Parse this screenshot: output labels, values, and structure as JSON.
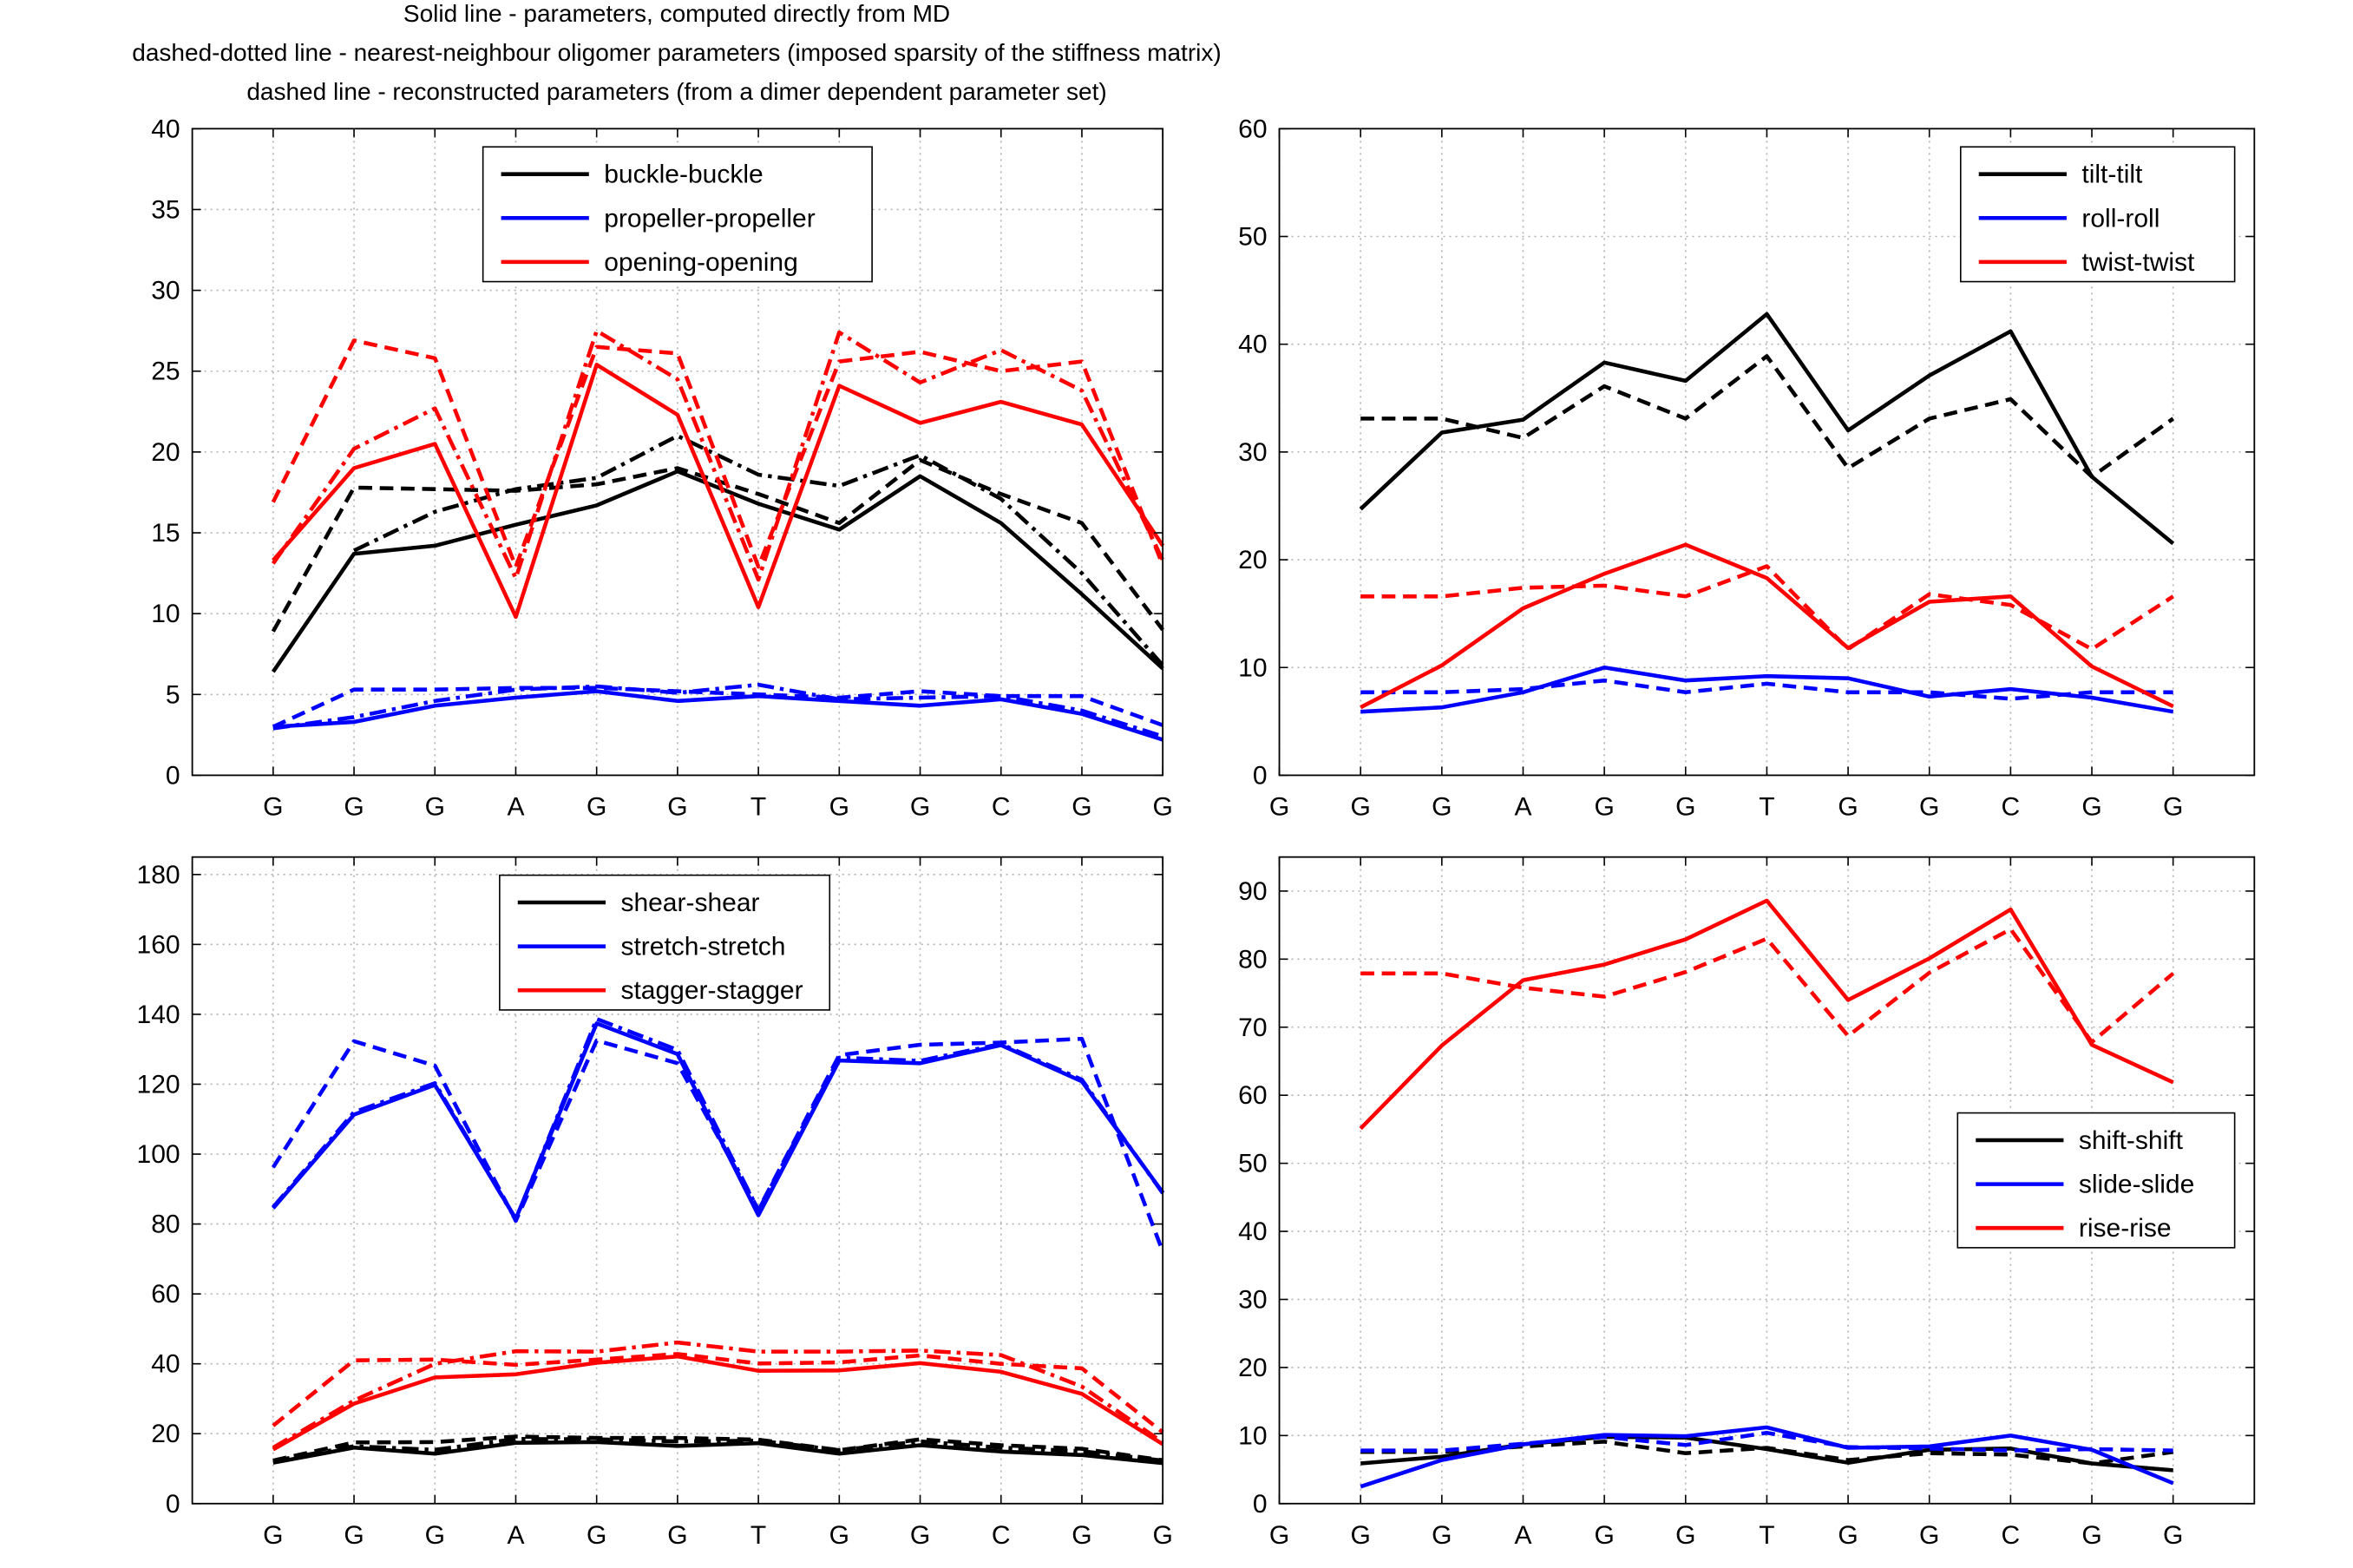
{
  "figure_title": [
    "Solid line - parameters, computed directly from MD",
    "dashed-dotted line - nearest-neighbour oligomer parameters (imposed sparsity of the stiffness matrix)",
    "dashed line - reconstructed parameters (from a dimer dependent parameter set)"
  ],
  "colors": {
    "black": "#000000",
    "blue": "#0000ff",
    "red": "#ff0000",
    "grid": "#b0b0b0"
  },
  "chart_data": [
    {
      "type": "line",
      "panel": "top-left",
      "title": "",
      "xlabel": "",
      "ylabel": "",
      "categories": [
        "G",
        "G",
        "G",
        "A",
        "G",
        "G",
        "T",
        "G",
        "G",
        "C",
        "G",
        "G"
      ],
      "ylim": [
        0,
        40
      ],
      "yticks": [
        0,
        5,
        10,
        15,
        20,
        25,
        30,
        35,
        40
      ],
      "grid": true,
      "legend_position": "top-center",
      "series": [
        {
          "name": "buckle-buckle",
          "color": "#000000",
          "style": "solid",
          "x": [
            1,
            2,
            3,
            4,
            5,
            6,
            7,
            8,
            9,
            10,
            11,
            12
          ],
          "values": [
            6.4,
            13.7,
            14.2,
            15.5,
            16.7,
            18.8,
            16.8,
            15.2,
            18.5,
            15.6,
            11.2,
            6.6
          ]
        },
        {
          "name": "",
          "color": "#000000",
          "style": "dashdot",
          "x": [
            1,
            2,
            3,
            4,
            5,
            6,
            7,
            8,
            9,
            10,
            11,
            12
          ],
          "values": [
            null,
            13.9,
            16.3,
            17.7,
            18.4,
            21.0,
            18.6,
            17.9,
            19.8,
            17.1,
            12.5,
            6.8
          ]
        },
        {
          "name": "",
          "color": "#000000",
          "style": "dashed",
          "x": [
            1,
            2,
            3,
            4,
            5,
            6,
            7,
            8,
            9,
            10,
            11,
            12
          ],
          "values": [
            8.9,
            17.8,
            17.7,
            17.6,
            18.0,
            19.0,
            17.4,
            15.6,
            19.5,
            17.4,
            15.6,
            9.0
          ]
        },
        {
          "name": "propeller-propeller",
          "color": "#0000ff",
          "style": "solid",
          "x": [
            1,
            2,
            3,
            4,
            5,
            6,
            7,
            8,
            9,
            10,
            11,
            12
          ],
          "values": [
            3.0,
            3.3,
            4.3,
            4.8,
            5.2,
            4.6,
            4.9,
            4.6,
            4.3,
            4.7,
            3.8,
            2.2
          ]
        },
        {
          "name": "",
          "color": "#0000ff",
          "style": "dashdot",
          "x": [
            1,
            2,
            3,
            4,
            5,
            6,
            7,
            8,
            9,
            10,
            11,
            12
          ],
          "values": [
            2.9,
            3.6,
            4.6,
            5.3,
            5.5,
            5.1,
            5.6,
            4.7,
            4.8,
            4.9,
            4.0,
            2.4
          ]
        },
        {
          "name": "",
          "color": "#0000ff",
          "style": "dashed",
          "x": [
            1,
            2,
            3,
            4,
            5,
            6,
            7,
            8,
            9,
            10,
            11,
            12
          ],
          "values": [
            3.0,
            5.3,
            5.3,
            5.4,
            5.4,
            5.2,
            5.0,
            4.8,
            5.2,
            4.9,
            4.9,
            3.1
          ]
        },
        {
          "name": "opening-opening",
          "color": "#ff0000",
          "style": "solid",
          "x": [
            1,
            2,
            3,
            4,
            5,
            6,
            7,
            8,
            9,
            10,
            11,
            12
          ],
          "values": [
            13.3,
            19.0,
            20.5,
            9.8,
            25.4,
            22.3,
            10.4,
            24.1,
            21.8,
            23.1,
            21.7,
            14.2
          ]
        },
        {
          "name": "",
          "color": "#ff0000",
          "style": "dashdot",
          "x": [
            1,
            2,
            3,
            4,
            5,
            6,
            7,
            8,
            9,
            10,
            11,
            12
          ],
          "values": [
            13.1,
            20.2,
            22.7,
            12.2,
            27.5,
            24.5,
            12.1,
            27.4,
            24.3,
            26.3,
            23.8,
            13.3
          ]
        },
        {
          "name": "",
          "color": "#ff0000",
          "style": "dashed",
          "x": [
            1,
            2,
            3,
            4,
            5,
            6,
            7,
            8,
            9,
            10,
            11,
            12
          ],
          "values": [
            16.9,
            26.9,
            25.8,
            12.9,
            26.5,
            26.1,
            12.9,
            25.6,
            26.2,
            25.0,
            25.6,
            13.0
          ]
        }
      ]
    },
    {
      "type": "line",
      "panel": "top-right",
      "title": "",
      "xlabel": "",
      "ylabel": "",
      "categories": [
        "G",
        "G",
        "G",
        "A",
        "G",
        "G",
        "T",
        "G",
        "G",
        "C",
        "G",
        "G"
      ],
      "xlim": [
        0,
        12
      ],
      "ylim": [
        0,
        60
      ],
      "yticks": [
        0,
        10,
        20,
        30,
        40,
        50,
        60
      ],
      "grid": true,
      "legend_position": "top-right",
      "series": [
        {
          "name": "tilt-tilt",
          "color": "#000000",
          "style": "solid",
          "x": [
            1,
            2,
            3,
            4,
            5,
            6,
            7,
            8,
            9,
            10,
            11
          ],
          "values": [
            24.7,
            31.8,
            33.0,
            38.3,
            36.6,
            42.8,
            32.0,
            37.1,
            41.2,
            27.7,
            21.5
          ]
        },
        {
          "name": "",
          "color": "#000000",
          "style": "dashed",
          "x": [
            1,
            2,
            3,
            4,
            5,
            6,
            7,
            8,
            9,
            10,
            11
          ],
          "values": [
            33.1,
            33.1,
            31.3,
            36.1,
            33.1,
            38.9,
            28.5,
            33.1,
            34.9,
            27.7,
            33.1
          ]
        },
        {
          "name": "roll-roll",
          "color": "#0000ff",
          "style": "solid",
          "x": [
            1,
            2,
            3,
            4,
            5,
            6,
            7,
            8,
            9,
            10,
            11
          ],
          "values": [
            5.9,
            6.3,
            7.7,
            10.0,
            8.8,
            9.2,
            9.0,
            7.3,
            8.0,
            7.2,
            5.9
          ]
        },
        {
          "name": "",
          "color": "#0000ff",
          "style": "dashed",
          "x": [
            1,
            2,
            3,
            4,
            5,
            6,
            7,
            8,
            9,
            10,
            11
          ],
          "values": [
            7.7,
            7.7,
            8.0,
            8.8,
            7.7,
            8.5,
            7.7,
            7.7,
            7.1,
            7.7,
            7.7
          ]
        },
        {
          "name": "twist-twist",
          "color": "#ff0000",
          "style": "solid",
          "x": [
            1,
            2,
            3,
            4,
            5,
            6,
            7,
            8,
            9,
            10,
            11
          ],
          "values": [
            6.3,
            10.2,
            15.5,
            18.7,
            21.4,
            18.3,
            11.8,
            16.1,
            16.6,
            10.1,
            6.4
          ]
        },
        {
          "name": "",
          "color": "#ff0000",
          "style": "dashed",
          "x": [
            1,
            2,
            3,
            4,
            5,
            6,
            7,
            8,
            9,
            10,
            11
          ],
          "values": [
            16.6,
            16.6,
            17.4,
            17.6,
            16.6,
            19.4,
            11.7,
            16.8,
            15.8,
            11.7,
            16.6
          ]
        }
      ]
    },
    {
      "type": "line",
      "panel": "bottom-left",
      "title": "",
      "xlabel": "",
      "ylabel": "",
      "categories": [
        "G",
        "G",
        "G",
        "A",
        "G",
        "G",
        "T",
        "G",
        "G",
        "C",
        "G",
        "G"
      ],
      "ylim": [
        0,
        185
      ],
      "yticks": [
        0,
        20,
        40,
        60,
        80,
        100,
        120,
        140,
        160,
        180
      ],
      "grid": true,
      "legend_position": "top-center",
      "series": [
        {
          "name": "shear-shear",
          "color": "#000000",
          "style": "solid",
          "x": [
            1,
            2,
            3,
            4,
            5,
            6,
            7,
            8,
            9,
            10,
            11,
            12
          ],
          "values": [
            11.7,
            16.0,
            14.3,
            17.4,
            17.6,
            16.5,
            17.3,
            14.3,
            16.7,
            14.9,
            13.9,
            11.6
          ]
        },
        {
          "name": "",
          "color": "#000000",
          "style": "dashdot",
          "x": [
            1,
            2,
            3,
            4,
            5,
            6,
            7,
            8,
            9,
            10,
            11,
            12
          ],
          "values": [
            12.2,
            16.4,
            15.4,
            18.5,
            18.4,
            17.8,
            18.0,
            15.3,
            17.8,
            16.0,
            15.0,
            12.3
          ]
        },
        {
          "name": "",
          "color": "#000000",
          "style": "dashed",
          "x": [
            1,
            2,
            3,
            4,
            5,
            6,
            7,
            8,
            9,
            10,
            11,
            12
          ],
          "values": [
            12.3,
            17.5,
            17.6,
            19.2,
            18.8,
            18.8,
            18.3,
            15.3,
            18.4,
            16.7,
            15.7,
            12.4
          ]
        },
        {
          "name": "stretch-stretch",
          "color": "#0000ff",
          "style": "solid",
          "x": [
            1,
            2,
            3,
            4,
            5,
            6,
            7,
            8,
            9,
            10,
            11,
            12
          ],
          "values": [
            84.5,
            111.3,
            119.8,
            81.5,
            137.4,
            128.6,
            82.5,
            126.8,
            126.0,
            131.2,
            120.8,
            89.0
          ]
        },
        {
          "name": "",
          "color": "#0000ff",
          "style": "dashdot",
          "x": [
            1,
            2,
            3,
            4,
            5,
            6,
            7,
            8,
            9,
            10,
            11,
            12
          ],
          "values": [
            84.8,
            112.0,
            120.3,
            81.3,
            138.7,
            129.8,
            83.9,
            127.6,
            126.7,
            131.5,
            121.3,
            88.8
          ]
        },
        {
          "name": "",
          "color": "#0000ff",
          "style": "dashed",
          "x": [
            1,
            2,
            3,
            4,
            5,
            6,
            7,
            8,
            9,
            10,
            11,
            12
          ],
          "values": [
            96.2,
            132.3,
            125.3,
            80.9,
            132.5,
            126.0,
            84.1,
            128.3,
            131.3,
            131.9,
            133.0,
            72.1
          ]
        },
        {
          "name": "stagger-stagger",
          "color": "#ff0000",
          "style": "solid",
          "x": [
            1,
            2,
            3,
            4,
            5,
            6,
            7,
            8,
            9,
            10,
            11,
            12
          ],
          "values": [
            15.5,
            28.6,
            36.1,
            37.0,
            40.3,
            42.1,
            38.0,
            38.1,
            40.2,
            37.7,
            31.4,
            17.0
          ]
        },
        {
          "name": "",
          "color": "#ff0000",
          "style": "dashdot",
          "x": [
            1,
            2,
            3,
            4,
            5,
            6,
            7,
            8,
            9,
            10,
            11,
            12
          ],
          "values": [
            16.0,
            29.5,
            40.0,
            43.6,
            43.5,
            46.1,
            43.5,
            43.5,
            43.8,
            42.5,
            33.5,
            17.5
          ]
        },
        {
          "name": "",
          "color": "#ff0000",
          "style": "dashed",
          "x": [
            1,
            2,
            3,
            4,
            5,
            6,
            7,
            8,
            9,
            10,
            11,
            12
          ],
          "values": [
            22.3,
            41.0,
            41.2,
            39.7,
            41.2,
            42.8,
            40.1,
            40.4,
            42.4,
            40.0,
            38.7,
            20.4
          ]
        }
      ]
    },
    {
      "type": "line",
      "panel": "bottom-right",
      "title": "",
      "xlabel": "",
      "ylabel": "",
      "categories": [
        "G",
        "G",
        "G",
        "A",
        "G",
        "G",
        "T",
        "G",
        "G",
        "C",
        "G",
        "G"
      ],
      "xlim": [
        0,
        12
      ],
      "ylim": [
        0,
        95
      ],
      "yticks": [
        0,
        10,
        20,
        30,
        40,
        50,
        60,
        70,
        80,
        90
      ],
      "grid": true,
      "legend_position": "right",
      "series": [
        {
          "name": "shift-shift",
          "color": "#000000",
          "style": "solid",
          "x": [
            1,
            2,
            3,
            4,
            5,
            6,
            7,
            8,
            9,
            10,
            11
          ],
          "values": [
            5.9,
            6.9,
            8.7,
            9.8,
            9.7,
            8.0,
            6.0,
            7.9,
            8.1,
            5.9,
            4.9
          ]
        },
        {
          "name": "",
          "color": "#000000",
          "style": "dashed",
          "x": [
            1,
            2,
            3,
            4,
            5,
            6,
            7,
            8,
            9,
            10,
            11
          ],
          "values": [
            7.6,
            7.6,
            8.4,
            9.1,
            7.4,
            8.2,
            6.4,
            7.4,
            7.2,
            5.9,
            7.6
          ]
        },
        {
          "name": "slide-slide",
          "color": "#0000ff",
          "style": "solid",
          "x": [
            1,
            2,
            3,
            4,
            5,
            6,
            7,
            8,
            9,
            10,
            11
          ],
          "values": [
            2.5,
            6.4,
            8.7,
            10.1,
            9.9,
            11.2,
            8.2,
            8.4,
            10.0,
            7.9,
            3.0
          ]
        },
        {
          "name": "",
          "color": "#0000ff",
          "style": "dashed",
          "x": [
            1,
            2,
            3,
            4,
            5,
            6,
            7,
            8,
            9,
            10,
            11
          ],
          "values": [
            7.8,
            7.8,
            8.8,
            9.8,
            8.6,
            10.4,
            8.3,
            8.1,
            7.8,
            8.0,
            7.8
          ]
        },
        {
          "name": "rise-rise",
          "color": "#ff0000",
          "style": "solid",
          "x": [
            1,
            2,
            3,
            4,
            5,
            6,
            7,
            8,
            9,
            10,
            11
          ],
          "values": [
            55.1,
            67.3,
            76.9,
            79.2,
            82.9,
            88.6,
            74.0,
            80.1,
            87.3,
            67.4,
            61.9
          ]
        },
        {
          "name": "",
          "color": "#ff0000",
          "style": "dashed",
          "x": [
            1,
            2,
            3,
            4,
            5,
            6,
            7,
            8,
            9,
            10,
            11
          ],
          "values": [
            77.9,
            77.9,
            75.8,
            74.5,
            78.1,
            83.0,
            68.7,
            78.0,
            84.4,
            67.8,
            77.9
          ]
        }
      ]
    }
  ]
}
